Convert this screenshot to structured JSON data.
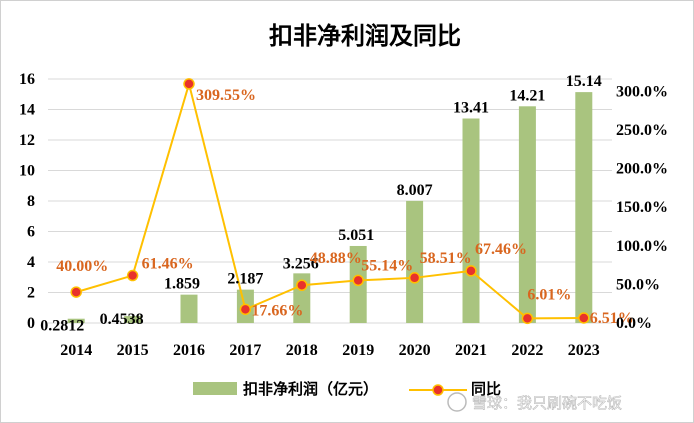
{
  "chart_data": {
    "type": "bar+line",
    "title": "扣非净利润及同比",
    "categories": [
      "2014",
      "2015",
      "2016",
      "2017",
      "2018",
      "2019",
      "2020",
      "2021",
      "2022",
      "2023"
    ],
    "series": [
      {
        "name": "扣非净利润（亿元）",
        "type": "bar",
        "axis": "left",
        "color": "#a9c47f",
        "values": [
          0.2812,
          0.4538,
          1.859,
          2.187,
          3.256,
          5.051,
          8.007,
          13.41,
          14.21,
          15.14
        ],
        "labels": [
          "0.2812",
          "0.4538",
          "1.859",
          "2.187",
          "3.256",
          "5.051",
          "8.007",
          "13.41",
          "14.21",
          "15.14"
        ]
      },
      {
        "name": "同比",
        "type": "line",
        "axis": "right",
        "color": "#ffc000",
        "marker_color": "#e8322b",
        "values": [
          40.0,
          61.46,
          309.55,
          17.66,
          48.88,
          55.14,
          58.51,
          67.46,
          6.01,
          6.51
        ],
        "labels": [
          "40.00%",
          "61.46%",
          "309.55%",
          "17.66%",
          "48.88%",
          "55.14%",
          "58.51%",
          "67.46%",
          "6.01%",
          "6.51%"
        ]
      }
    ],
    "y_left": {
      "min": 0,
      "max": 16,
      "ticks": [
        "0",
        "2",
        "4",
        "6",
        "8",
        "10",
        "12",
        "14",
        "16"
      ]
    },
    "y_right": {
      "min": 0,
      "max": 325,
      "ticks": [
        "0.0%",
        "50.0%",
        "100.0%",
        "150.0%",
        "200.0%",
        "250.0%",
        "300.0%"
      ]
    },
    "grid": true,
    "legend_position": "bottom"
  },
  "watermark": "雪球：我只刷碗不吃饭"
}
